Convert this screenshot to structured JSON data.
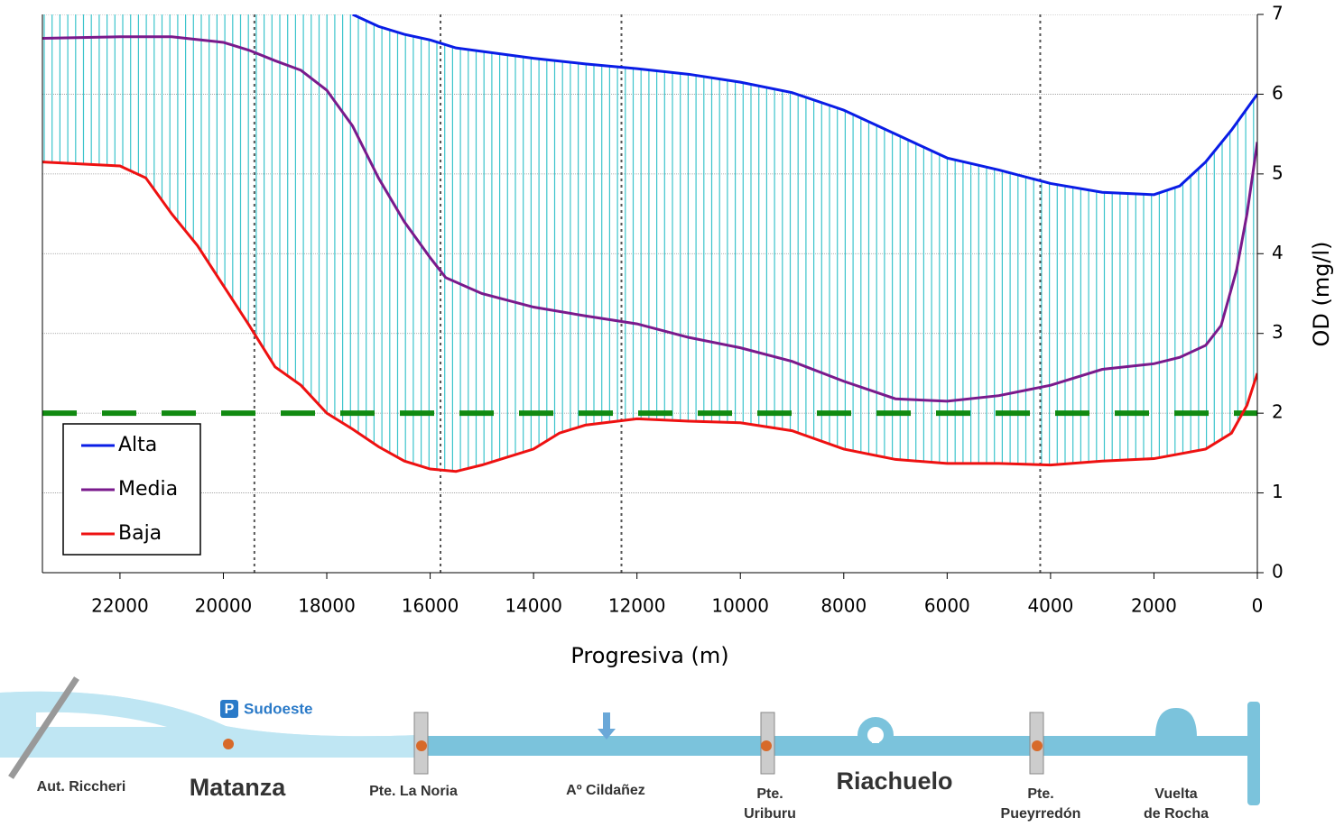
{
  "chart_data": {
    "type": "line",
    "x_label": "Progresiva (m)",
    "y_label": "OD (mg/l)",
    "xlim": [
      23500,
      0
    ],
    "xticks": [
      22000,
      20000,
      18000,
      16000,
      14000,
      12000,
      10000,
      8000,
      6000,
      4000,
      2000,
      0
    ],
    "ylim": [
      0,
      7
    ],
    "yticks": [
      0,
      1,
      2,
      3,
      4,
      5,
      6,
      7
    ],
    "grid": true,
    "fill_color": "#3cc4cc",
    "threshold": 2,
    "threshold_color": "#118a11",
    "reference_x": [
      19400,
      15800,
      12300,
      4200
    ],
    "series": [
      {
        "name": "Alta",
        "color": "#0a1de6",
        "x": [
          17500,
          17000,
          16500,
          16000,
          15500,
          14000,
          13000,
          12000,
          11000,
          10000,
          9000,
          8000,
          7000,
          6000,
          5000,
          4000,
          3000,
          2000,
          1500,
          1000,
          500,
          0
        ],
        "values": [
          7.0,
          6.85,
          6.75,
          6.68,
          6.58,
          6.45,
          6.38,
          6.32,
          6.25,
          6.15,
          6.02,
          5.8,
          5.5,
          5.2,
          5.05,
          4.88,
          4.77,
          4.74,
          4.85,
          5.15,
          5.55,
          6.0
        ]
      },
      {
        "name": "Media",
        "color": "#7a1a8c",
        "x": [
          23500,
          22000,
          21000,
          20000,
          19500,
          19000,
          18500,
          18000,
          17500,
          17000,
          16500,
          16000,
          15700,
          15000,
          14000,
          13000,
          12000,
          11000,
          10000,
          9000,
          8000,
          7000,
          6000,
          5000,
          4000,
          3000,
          2000,
          1500,
          1000,
          700,
          400,
          200,
          0
        ],
        "values": [
          6.7,
          6.72,
          6.72,
          6.65,
          6.55,
          6.42,
          6.3,
          6.05,
          5.6,
          4.95,
          4.4,
          3.95,
          3.7,
          3.5,
          3.33,
          3.22,
          3.12,
          2.95,
          2.82,
          2.65,
          2.4,
          2.18,
          2.15,
          2.22,
          2.35,
          2.55,
          2.62,
          2.7,
          2.85,
          3.1,
          3.8,
          4.5,
          5.4
        ]
      },
      {
        "name": "Baja",
        "color": "#ee1111",
        "x": [
          23500,
          22000,
          21500,
          21000,
          20500,
          20000,
          19500,
          19000,
          18500,
          18000,
          17500,
          17000,
          16500,
          16000,
          15500,
          15000,
          14000,
          13500,
          13000,
          12000,
          11000,
          10000,
          9000,
          8000,
          7000,
          6000,
          5000,
          4000,
          3000,
          2000,
          1000,
          500,
          200,
          0
        ],
        "values": [
          5.15,
          5.1,
          4.95,
          4.5,
          4.1,
          3.6,
          3.1,
          2.58,
          2.35,
          2.0,
          1.8,
          1.58,
          1.4,
          1.3,
          1.27,
          1.35,
          1.55,
          1.75,
          1.85,
          1.93,
          1.9,
          1.88,
          1.78,
          1.55,
          1.42,
          1.37,
          1.37,
          1.35,
          1.4,
          1.43,
          1.55,
          1.75,
          2.1,
          2.5
        ]
      }
    ]
  },
  "diagram": {
    "parking_icon": "P",
    "parking": "Sudoeste",
    "labels": [
      "Aut. Riccheri",
      "Matanza",
      "Pte. La Noria",
      "Aº Cildañez",
      "Pte.",
      "Uriburu",
      "Riachuelo",
      "Pte.",
      "Pueyrredón",
      "Vuelta",
      "de Rocha"
    ]
  }
}
